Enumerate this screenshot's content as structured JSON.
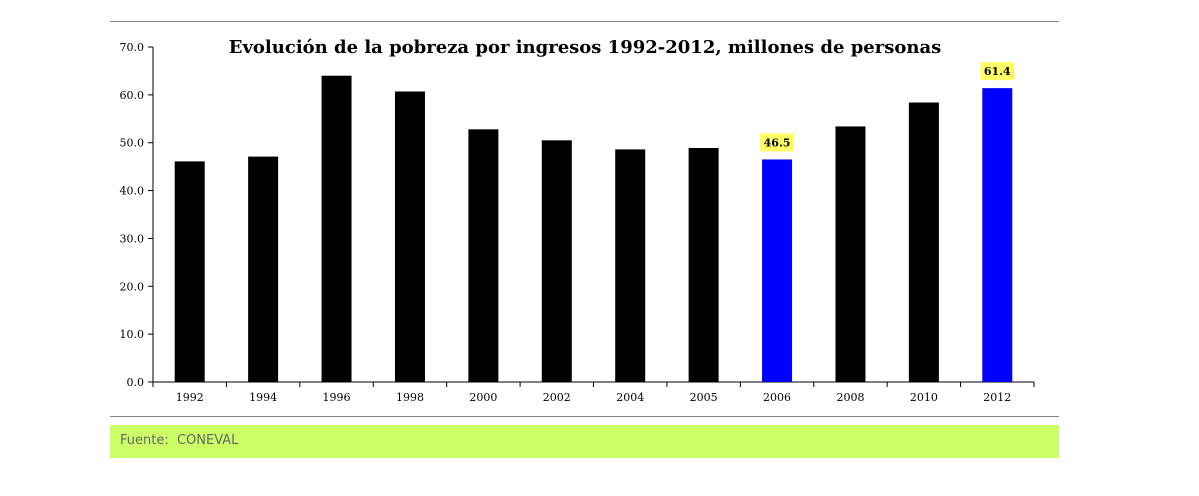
{
  "chart_data": {
    "type": "bar",
    "title": "Evolución de la pobreza por ingresos 1992-2012, millones de personas",
    "categories": [
      "1992",
      "1994",
      "1996",
      "1998",
      "2000",
      "2002",
      "2004",
      "2005",
      "2006",
      "2008",
      "2010",
      "2012"
    ],
    "values": [
      46.1,
      47.1,
      64.0,
      60.7,
      52.8,
      50.5,
      48.6,
      48.9,
      46.5,
      53.4,
      58.4,
      61.4
    ],
    "ylim": [
      0,
      70
    ],
    "yticks": [
      "0.0",
      "10.0",
      "20.0",
      "30.0",
      "40.0",
      "50.0",
      "60.0",
      "70.0"
    ],
    "xlabel": "",
    "ylabel": "",
    "grid": false,
    "colors": {
      "default": "#000000",
      "highlight": "#0000ff",
      "label_background": "#ffff66"
    },
    "highlighted": [
      "2006",
      "2012"
    ],
    "data_labels": [
      {
        "category": "2006",
        "text": "46.5"
      },
      {
        "category": "2012",
        "text": "61.4"
      }
    ]
  },
  "source": {
    "text": "Fuente:  CONEVAL",
    "background": "#ccff66"
  }
}
